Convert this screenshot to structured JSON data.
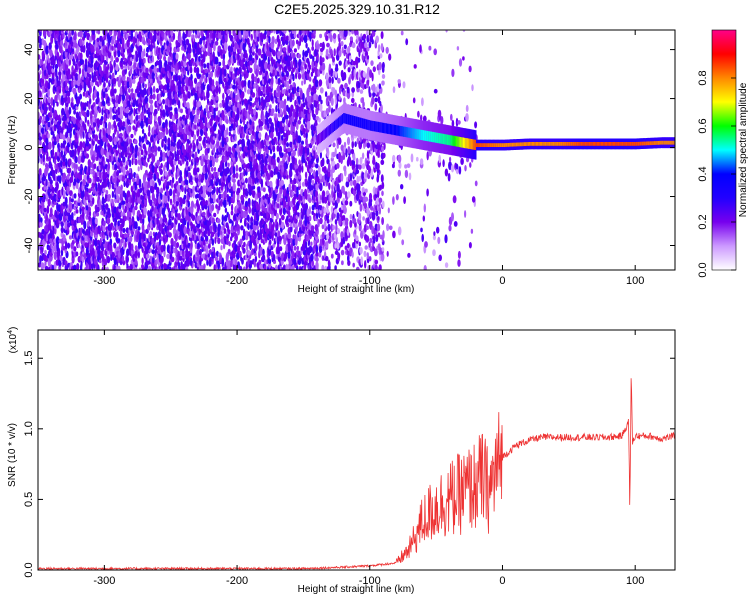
{
  "title": "C2E5.2025.329.10.31.R12",
  "chart_data": [
    {
      "type": "heatmap",
      "xlabel": "Height of straight line (km)",
      "ylabel": "Frequency (Hz)",
      "xlim": [
        -350,
        130
      ],
      "ylim": [
        -50,
        48
      ],
      "xticks": [
        -300,
        -200,
        -100,
        0,
        100
      ],
      "yticks": [
        -40,
        -20,
        0,
        20,
        40
      ],
      "colorbar": {
        "label": "Normalized spectral amplitude",
        "range": [
          0.0,
          1.0
        ],
        "ticks": [
          0.0,
          0.2,
          0.4,
          0.6,
          0.8
        ],
        "colormap": [
          "#ffffff",
          "#cc99ff",
          "#7700ee",
          "#2200ff",
          "#0000ff",
          "#00ffff",
          "#00ff00",
          "#ffff00",
          "#ff8800",
          "#ff0000",
          "#ff0088"
        ]
      },
      "noise_region_x": [
        -350,
        -90
      ],
      "transition_region_x": [
        -90,
        -20
      ],
      "signal_track": [
        {
          "x": -140,
          "f": 3,
          "amp": 0.2
        },
        {
          "x": -120,
          "f": 12,
          "amp": 0.35
        },
        {
          "x": -100,
          "f": 9,
          "amp": 0.35
        },
        {
          "x": -80,
          "f": 7,
          "amp": 0.4
        },
        {
          "x": -60,
          "f": 5,
          "amp": 0.5
        },
        {
          "x": -40,
          "f": 3,
          "amp": 0.55
        },
        {
          "x": -20,
          "f": 1,
          "amp": 0.85
        },
        {
          "x": 0,
          "f": 1,
          "amp": 0.8
        },
        {
          "x": 20,
          "f": 1.5,
          "amp": 0.8
        },
        {
          "x": 40,
          "f": 1.5,
          "amp": 0.8
        },
        {
          "x": 60,
          "f": 1.5,
          "amp": 0.85
        },
        {
          "x": 80,
          "f": 1.5,
          "amp": 0.85
        },
        {
          "x": 100,
          "f": 1.5,
          "amp": 0.85
        },
        {
          "x": 120,
          "f": 2,
          "amp": 0.8
        },
        {
          "x": 130,
          "f": 2,
          "amp": 0.8
        }
      ]
    },
    {
      "type": "line",
      "xlabel": "Height of straight line (km)",
      "ylabel": "SNR (10 * v/v)",
      "yscale_label": "(x10",
      "yscale_exponent": "4",
      "xlim": [
        -350,
        130
      ],
      "ylim": [
        0,
        1.7
      ],
      "xticks": [
        -300,
        -200,
        -100,
        0,
        100
      ],
      "yticks": [
        0.0,
        0.5,
        1.0,
        1.5
      ],
      "ytick_labels": [
        "0.0",
        "0.5",
        "1.0",
        "1.5"
      ],
      "color": "#ee3333",
      "series": [
        {
          "x": [
            -350,
            -300,
            -250,
            -200,
            -150,
            -120,
            -100,
            -80,
            -70,
            -60,
            -50,
            -40,
            -30,
            -20,
            -15,
            -10,
            -5,
            0,
            10,
            20,
            30,
            40,
            60,
            80,
            90,
            95,
            96,
            97,
            98,
            100,
            110,
            120,
            130
          ],
          "values": [
            0.01,
            0.01,
            0.01,
            0.01,
            0.01,
            0.02,
            0.03,
            0.05,
            0.15,
            0.35,
            0.45,
            0.5,
            0.55,
            0.6,
            0.65,
            0.55,
            0.7,
            0.8,
            0.88,
            0.92,
            0.94,
            0.94,
            0.94,
            0.94,
            0.95,
            1.05,
            0.42,
            1.4,
            0.9,
            0.95,
            0.95,
            0.93,
            0.95
          ]
        }
      ]
    }
  ]
}
